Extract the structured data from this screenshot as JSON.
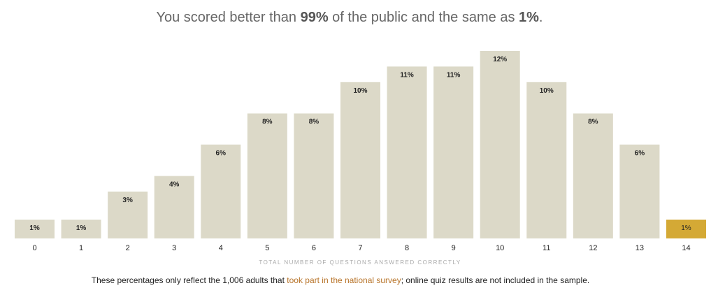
{
  "headline": {
    "prefix": "You scored better than ",
    "better_pct": "99%",
    "middle": " of the public and the same as ",
    "same_pct": "1%",
    "suffix": "."
  },
  "chart_data": {
    "type": "bar",
    "categories": [
      "0",
      "1",
      "2",
      "3",
      "4",
      "5",
      "6",
      "7",
      "8",
      "9",
      "10",
      "11",
      "12",
      "13",
      "14"
    ],
    "values": [
      1,
      1,
      3,
      4,
      6,
      8,
      8,
      10,
      11,
      11,
      12,
      10,
      8,
      6,
      1
    ],
    "data_labels": [
      "1%",
      "1%",
      "3%",
      "4%",
      "6%",
      "8%",
      "8%",
      "10%",
      "11%",
      "11%",
      "12%",
      "10%",
      "8%",
      "6%",
      "1%"
    ],
    "highlight_index": 14,
    "xlabel": "TOTAL NUMBER OF QUESTIONS ANSWERED CORRECTLY",
    "ylabel": "",
    "grid": false,
    "colors": {
      "bar": "#dcd9c8",
      "highlight": "#d4a935"
    }
  },
  "note": {
    "before": "These percentages only reflect the 1,006 adults that ",
    "link": "took part in the national survey",
    "after": "; online quiz results are not included in the sample."
  }
}
